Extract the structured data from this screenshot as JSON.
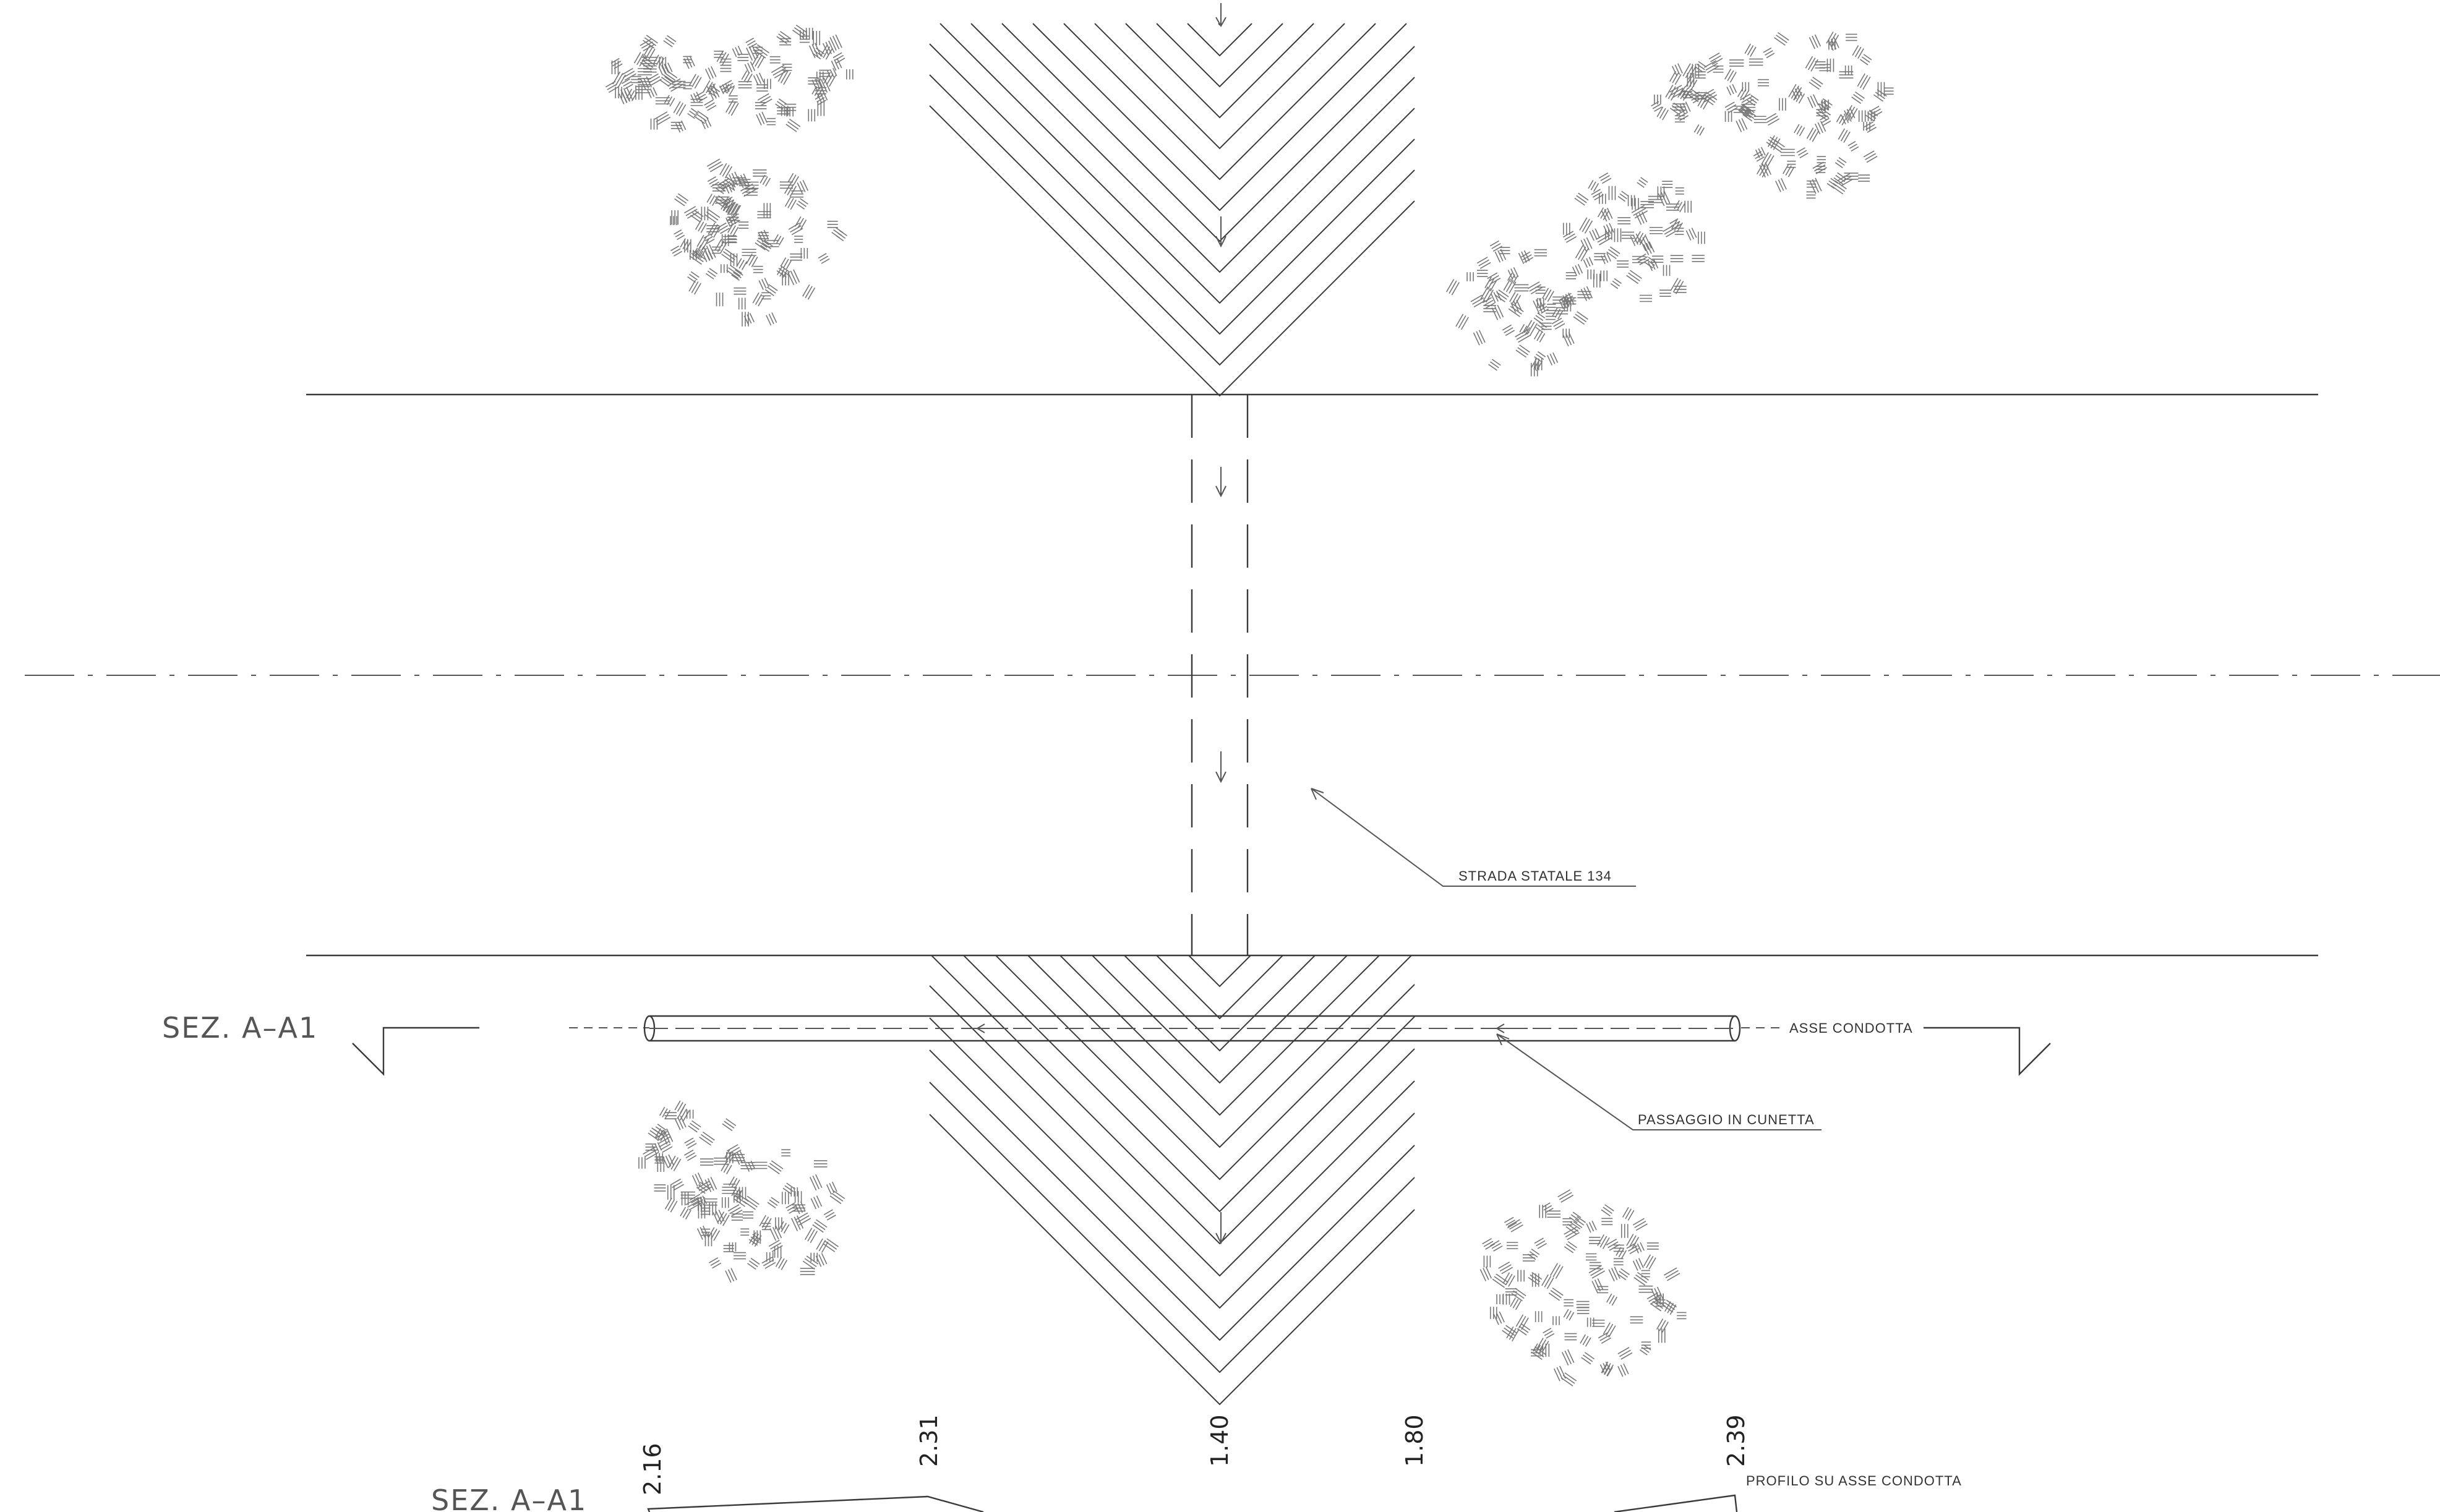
{
  "labels": {
    "road": "STRADA STATALE 134",
    "pipe_axis": "ASSE CONDOTTA",
    "ditch_passage": "PASSAGGIO IN CUNETTA",
    "section_top": "SEZ. A–A1",
    "section_bottom": "SEZ. A–A1",
    "profile": "PROFILO SU ASSE CONDOTTA"
  },
  "profile_values": [
    "2.16",
    "2.31",
    "1.40",
    "1.80",
    "2.39"
  ],
  "colors": {
    "lines": "#3a3a3a",
    "vegetation": "#777777"
  }
}
